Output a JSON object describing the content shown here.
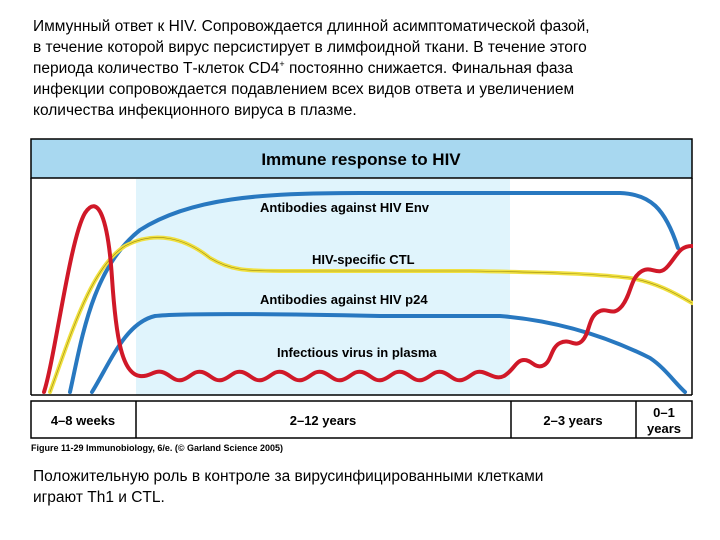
{
  "intro": {
    "line1": "Иммунный ответ к HIV. Сопровождается длинной асимптоматической фазой,",
    "line2": "в течение которой вирус персистирует в лимфоидной ткани. В течение этого",
    "line3_a": "периода количество Т-клеток CD4",
    "line3_sup": "+",
    "line3_b": " постоянно снижается. Финальная фаза",
    "line4": "инфекции сопровождается подавлением всех видов ответа и увеличением",
    "line5": "количества инфекционного вируса в плазме."
  },
  "figure": {
    "title": "Immune response to HIV",
    "labels": {
      "env": "Antibodies against  HIV  Env",
      "ctl": "HIV-specific CTL",
      "p24": "Antibodies against  HIV  p24",
      "virus": "Infectious virus  in  plasma"
    },
    "timeline": {
      "phase1": "4–8  weeks",
      "phase2": "2–12  years",
      "phase3": "2–3  years",
      "phase4_line1": "0–1",
      "phase4_line2": "years"
    },
    "colors": {
      "header_bg": "#a8d8f0",
      "chronic_bg": "#e0f4fc",
      "env_line": "#2878c0",
      "p24_line": "#2878c0",
      "ctl_line": "#f0e040",
      "virus_line": "#d01828",
      "frame": "#000000"
    }
  },
  "caption": {
    "prefix": "Figure 11-29  Immunobiology, 6/e. ",
    "suffix": "(© Garland Science 2005)"
  },
  "outro": {
    "line1": "Положительную роль в контроле за вирусинфицированными клетками",
    "line2": "играют Th1 и CTL."
  }
}
